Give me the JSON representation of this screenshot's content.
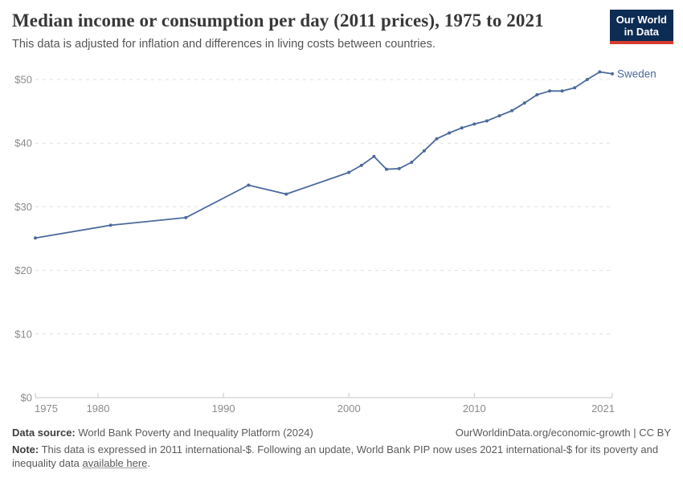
{
  "header": {
    "title": "Median income or consumption per day (2011 prices), 1975 to 2021",
    "subtitle": "This data is adjusted for inflation and differences in living costs between countries.",
    "logo": {
      "line1": "Our World",
      "line2": "in Data",
      "navy": "#0d2c54",
      "red": "#d63b2f"
    }
  },
  "chart_data": {
    "type": "line",
    "title": "Median income or consumption per day (2011 prices), 1975 to 2021",
    "subtitle": "This data is adjusted for inflation and differences in living costs between countries.",
    "xlabel": "",
    "ylabel": "",
    "xlim": [
      1975,
      2021
    ],
    "ylim": [
      0,
      53
    ],
    "grid": "horizontal-dashed",
    "legend_position": "end-of-line",
    "x_ticks": [
      {
        "value": 1975,
        "label": "1975"
      },
      {
        "value": 1980,
        "label": "1980"
      },
      {
        "value": 1990,
        "label": "1990"
      },
      {
        "value": 2000,
        "label": "2000"
      },
      {
        "value": 2010,
        "label": "2010"
      },
      {
        "value": 2021,
        "label": "2021"
      }
    ],
    "y_ticks": [
      {
        "value": 0,
        "label": "$0"
      },
      {
        "value": 10,
        "label": "$10"
      },
      {
        "value": 20,
        "label": "$20"
      },
      {
        "value": 30,
        "label": "$30"
      },
      {
        "value": 40,
        "label": "$40"
      },
      {
        "value": 50,
        "label": "$50"
      }
    ],
    "series": [
      {
        "name": "Sweden",
        "color": "#4c6a9c",
        "points": [
          [
            1975,
            25.1
          ],
          [
            1981,
            27.1
          ],
          [
            1987,
            28.3
          ],
          [
            1992,
            33.4
          ],
          [
            1995,
            32.0
          ],
          [
            2000,
            35.4
          ],
          [
            2001,
            36.5
          ],
          [
            2002,
            37.9
          ],
          [
            2003,
            35.9
          ],
          [
            2004,
            36.0
          ],
          [
            2005,
            37.0
          ],
          [
            2006,
            38.8
          ],
          [
            2007,
            40.7
          ],
          [
            2008,
            41.6
          ],
          [
            2009,
            42.4
          ],
          [
            2010,
            43.0
          ],
          [
            2011,
            43.5
          ],
          [
            2012,
            44.3
          ],
          [
            2013,
            45.1
          ],
          [
            2014,
            46.3
          ],
          [
            2015,
            47.6
          ],
          [
            2016,
            48.2
          ],
          [
            2017,
            48.2
          ],
          [
            2018,
            48.7
          ],
          [
            2019,
            50.0
          ],
          [
            2020,
            51.2
          ],
          [
            2021,
            50.9
          ]
        ]
      }
    ],
    "colors": {
      "gridline": "#e0e0e0",
      "axis": "#c6c6c6",
      "tick_label": "#8b8b8b"
    }
  },
  "footer": {
    "data_source_label": "Data source:",
    "data_source_text": "World Bank Poverty and Inequality Platform (2024)",
    "right_text": "OurWorldinData.org/economic-growth | CC BY",
    "note_label": "Note:",
    "note_text": "This data is expressed in 2011 international-$. Following an update, World Bank PIP now uses 2021 international-$ for its poverty and inequality data",
    "note_link": "available here",
    "note_after": "."
  }
}
